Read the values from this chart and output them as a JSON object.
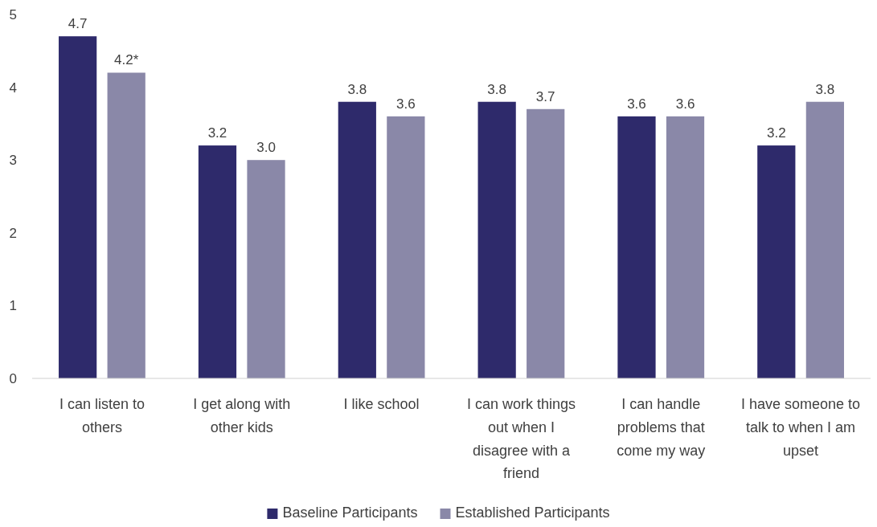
{
  "chart_data": {
    "type": "bar",
    "categories": [
      "I can listen to others",
      "I get along with other kids",
      "I like school",
      "I can work things out when I disagree with a friend",
      "I can handle problems that come my way",
      "I have someone to talk to when I am upset"
    ],
    "series": [
      {
        "name": "Baseline Participants",
        "color": "#2e2a6b",
        "values": [
          4.7,
          3.2,
          3.8,
          3.8,
          3.6,
          3.2
        ],
        "value_labels": [
          "4.7",
          "3.2",
          "3.8",
          "3.8",
          "3.6",
          "3.2"
        ]
      },
      {
        "name": "Established Participants",
        "color": "#8a88a8",
        "values": [
          4.2,
          3.0,
          3.6,
          3.7,
          3.6,
          3.8
        ],
        "value_labels": [
          "4.2*",
          "3.0",
          "3.6",
          "3.7",
          "3.6",
          "3.8"
        ]
      }
    ],
    "ylim": [
      0,
      5
    ],
    "yticks": [
      0,
      1,
      2,
      3,
      4,
      5
    ],
    "grid": false,
    "legend": "bottom"
  }
}
